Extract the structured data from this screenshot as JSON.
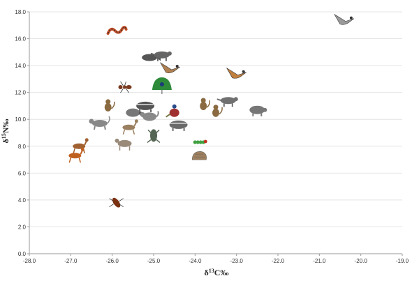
{
  "chart_data": {
    "type": "scatter",
    "xlabel": "δ13C‰",
    "xlabel_parts": {
      "delta": "δ",
      "mass": "13",
      "element": "C‰"
    },
    "ylabel": "δ15N‰",
    "ylabel_parts": {
      "delta": "δ",
      "mass": "15",
      "element": "N‰"
    },
    "xlim": [
      -28.0,
      -19.0
    ],
    "ylim": [
      0.0,
      18.0
    ],
    "grid": true,
    "x_ticks": [
      "-28.0",
      "-27.0",
      "-26.0",
      "-25.0",
      "-24.0",
      "-23.0",
      "-22.0",
      "-21.0",
      "-20.0",
      "-19.0"
    ],
    "y_ticks": [
      "0.0",
      "2.0",
      "4.0",
      "6.0",
      "8.0",
      "10.0",
      "12.0",
      "14.0",
      "16.0",
      "18.0"
    ],
    "points": [
      {
        "icon": "bird-icon",
        "x": -20.4,
        "y": 17.4,
        "color": "#9a9a9a"
      },
      {
        "icon": "snake-icon",
        "x": -25.9,
        "y": 16.6,
        "color": "#c0502a"
      },
      {
        "icon": "fish-icon",
        "x": -25.1,
        "y": 14.6,
        "color": "#555555"
      },
      {
        "icon": "civet-icon",
        "x": -24.8,
        "y": 14.8,
        "color": "#666666"
      },
      {
        "icon": "bird-icon",
        "x": -24.6,
        "y": 13.8,
        "color": "#b08050"
      },
      {
        "icon": "bird-icon",
        "x": -23.0,
        "y": 13.4,
        "color": "#c08040"
      },
      {
        "icon": "ant-icon",
        "x": -25.7,
        "y": 12.4,
        "color": "#7a3a20"
      },
      {
        "icon": "peacock-icon",
        "x": -24.8,
        "y": 12.5,
        "color": "#2e8b3a"
      },
      {
        "icon": "monkey-icon",
        "x": -26.1,
        "y": 11.0,
        "color": "#8a6a40"
      },
      {
        "icon": "badger-icon",
        "x": -25.2,
        "y": 11.0,
        "color": "#555555"
      },
      {
        "icon": "turtle-icon",
        "x": -25.5,
        "y": 10.5,
        "color": "#777777"
      },
      {
        "icon": "pheasant-icon",
        "x": -24.5,
        "y": 10.6,
        "color": "#a03030"
      },
      {
        "icon": "cat-icon",
        "x": -25.1,
        "y": 10.2,
        "color": "#888888"
      },
      {
        "icon": "monkey-icon",
        "x": -23.8,
        "y": 11.1,
        "color": "#8a6a40"
      },
      {
        "icon": "monkey-icon",
        "x": -23.5,
        "y": 10.6,
        "color": "#8a6a40"
      },
      {
        "icon": "civet-icon",
        "x": -23.2,
        "y": 11.4,
        "color": "#707070"
      },
      {
        "icon": "pig-icon",
        "x": -22.5,
        "y": 10.7,
        "color": "#777777"
      },
      {
        "icon": "macaque-icon",
        "x": -26.3,
        "y": 9.7,
        "color": "#888888"
      },
      {
        "icon": "deer-icon",
        "x": -25.6,
        "y": 9.4,
        "color": "#9a8060"
      },
      {
        "icon": "badger-icon",
        "x": -24.4,
        "y": 9.6,
        "color": "#6a6a6a"
      },
      {
        "icon": "frog-icon",
        "x": -25.0,
        "y": 8.8,
        "color": "#556655"
      },
      {
        "icon": "goat-icon",
        "x": -25.7,
        "y": 8.2,
        "color": "#9a8a7a"
      },
      {
        "icon": "deer-icon",
        "x": -26.8,
        "y": 8.0,
        "color": "#a06030"
      },
      {
        "icon": "deer-icon",
        "x": -26.9,
        "y": 7.3,
        "color": "#c06020"
      },
      {
        "icon": "caterpillar-icon",
        "x": -23.9,
        "y": 8.3,
        "color": "#40a040"
      },
      {
        "icon": "pangolin-icon",
        "x": -23.9,
        "y": 7.2,
        "color": "#a08060"
      },
      {
        "icon": "bug-icon",
        "x": -25.9,
        "y": 3.8,
        "color": "#7a3010"
      }
    ]
  }
}
